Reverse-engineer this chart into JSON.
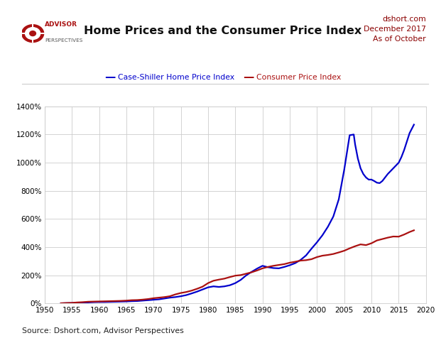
{
  "title": "Home Prices and the Consumer Price Index",
  "subtitle_right": "dshort.com\nDecember 2017\nAs of October",
  "source_text": "Source: Dshort.com, Advisor Perspectives",
  "legend_blue": "Case-Shiller Home Price Index",
  "legend_red": "Consumer Price Index",
  "logo_text1": "ADVISOR",
  "logo_text2": "PERSPECTIVES",
  "blue_color": "#0000CC",
  "red_color": "#AA1111",
  "subtitle_color": "#8B0000",
  "background_color": "#FFFFFF",
  "grid_color": "#CCCCCC",
  "xlim": [
    1950,
    2020
  ],
  "ylim": [
    0,
    1400
  ],
  "ytick_labels": [
    "0%",
    "200%",
    "400%",
    "600%",
    "800%",
    "1000%",
    "1200%",
    "1400%"
  ],
  "ytick_values": [
    0,
    200,
    400,
    600,
    800,
    1000,
    1200,
    1400
  ],
  "xtick_values": [
    1950,
    1955,
    1960,
    1965,
    1970,
    1975,
    1980,
    1985,
    1990,
    1995,
    2000,
    2005,
    2010,
    2015,
    2020
  ],
  "cpi_years": [
    1953,
    1954,
    1955,
    1956,
    1957,
    1958,
    1959,
    1960,
    1961,
    1962,
    1963,
    1964,
    1965,
    1966,
    1967,
    1968,
    1969,
    1970,
    1971,
    1972,
    1973,
    1974,
    1975,
    1976,
    1977,
    1978,
    1979,
    1980,
    1981,
    1982,
    1983,
    1984,
    1985,
    1986,
    1987,
    1988,
    1989,
    1990,
    1991,
    1992,
    1993,
    1994,
    1995,
    1996,
    1997,
    1998,
    1999,
    2000,
    2001,
    2002,
    2003,
    2004,
    2005,
    2006,
    2007,
    2008,
    2009,
    2010,
    2011,
    2012,
    2013,
    2014,
    2015,
    2016,
    2017,
    2017.8
  ],
  "cpi_values": [
    2,
    4,
    5,
    8,
    10,
    13,
    14,
    15,
    16,
    17,
    18,
    19,
    21,
    24,
    25,
    28,
    32,
    38,
    42,
    46,
    52,
    65,
    75,
    82,
    92,
    105,
    120,
    145,
    162,
    170,
    177,
    188,
    198,
    202,
    212,
    222,
    235,
    250,
    260,
    268,
    274,
    280,
    290,
    297,
    305,
    308,
    315,
    330,
    340,
    345,
    352,
    363,
    375,
    392,
    407,
    420,
    415,
    428,
    448,
    458,
    468,
    476,
    475,
    490,
    508,
    520
  ],
  "hpi_years": [
    1953,
    1954,
    1955,
    1956,
    1957,
    1958,
    1959,
    1960,
    1961,
    1962,
    1963,
    1964,
    1965,
    1966,
    1967,
    1968,
    1969,
    1970,
    1971,
    1972,
    1973,
    1974,
    1975,
    1976,
    1977,
    1978,
    1979,
    1980,
    1981,
    1982,
    1983,
    1984,
    1985,
    1986,
    1987,
    1988,
    1989,
    1990,
    1991,
    1992,
    1993,
    1994,
    1995,
    1996,
    1997,
    1998,
    1999,
    2000,
    2001,
    2002,
    2003,
    2004,
    2005,
    2006,
    2006.75,
    2007,
    2007.5,
    2008,
    2008.5,
    2009,
    2009.5,
    2010,
    2010.5,
    2011,
    2011.5,
    2012,
    2013,
    2014,
    2015,
    2015.5,
    2016,
    2016.5,
    2017,
    2017.8
  ],
  "hpi_values": [
    2,
    3,
    4,
    6,
    7,
    8,
    10,
    11,
    11,
    12,
    13,
    14,
    15,
    17,
    18,
    21,
    24,
    27,
    30,
    36,
    42,
    46,
    52,
    60,
    72,
    85,
    100,
    115,
    122,
    118,
    122,
    130,
    145,
    168,
    200,
    225,
    248,
    268,
    258,
    252,
    250,
    260,
    272,
    287,
    310,
    342,
    390,
    435,
    485,
    545,
    618,
    740,
    950,
    1195,
    1200,
    1130,
    1030,
    960,
    920,
    895,
    880,
    880,
    870,
    858,
    855,
    870,
    920,
    960,
    1000,
    1040,
    1090,
    1150,
    1210,
    1270
  ]
}
